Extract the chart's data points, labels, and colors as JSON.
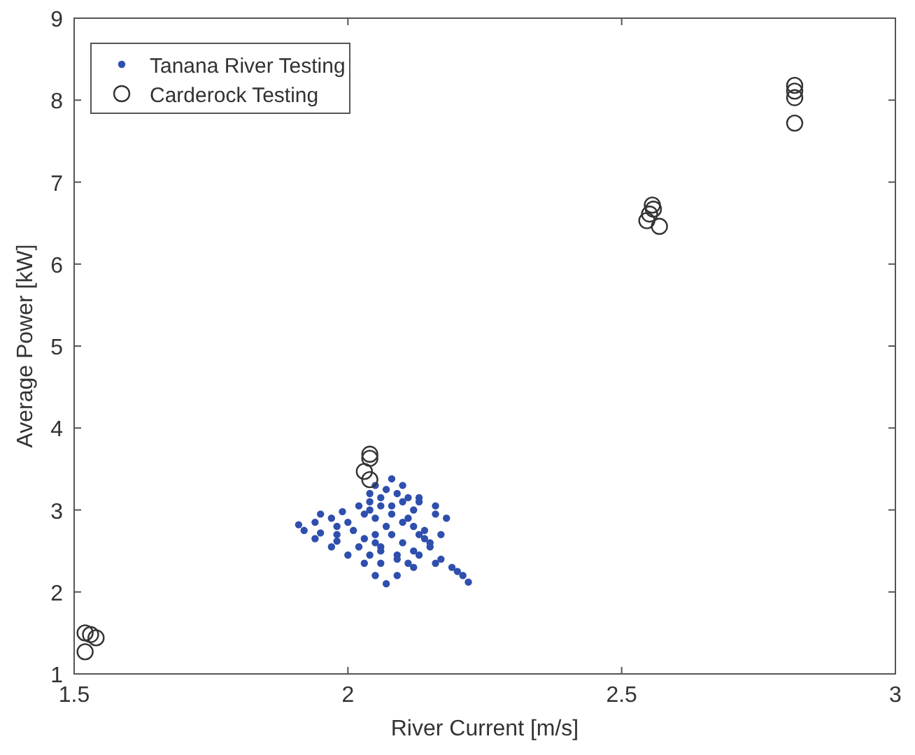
{
  "chart_data": {
    "type": "scatter",
    "xlabel": "River Current [m/s]",
    "ylabel": "Average Power [kW]",
    "xlim": [
      1.5,
      3
    ],
    "xticks": [
      1.5,
      2,
      2.5,
      3
    ],
    "ylim": [
      1,
      9
    ],
    "yticks": [
      1,
      2,
      3,
      4,
      5,
      6,
      7,
      8,
      9
    ],
    "grid": false,
    "legend": "top left",
    "series": [
      {
        "name": "Tanana River Testing",
        "color": "#2f4fad",
        "marker": "circle",
        "x": [
          2.05,
          2.08,
          2.1,
          2.13,
          2.16,
          2.18,
          2.17,
          2.15,
          2.17,
          2.19,
          2.21,
          2.22,
          2.2,
          2.16,
          2.12,
          2.09,
          2.07,
          2.05,
          2.03,
          2.0,
          1.97,
          1.94,
          1.92,
          1.91,
          1.94,
          1.98,
          2.01,
          1.98,
          1.95,
          1.98,
          2.02,
          2.05,
          2.08,
          2.1,
          2.12,
          2.1,
          2.06,
          2.03,
          2.0,
          1.97,
          1.95,
          1.99,
          2.04,
          2.08,
          2.12,
          2.14,
          2.12,
          2.09,
          2.06,
          2.04,
          2.06,
          2.1,
          2.14,
          2.16,
          2.13,
          2.09,
          2.06,
          2.04,
          2.02,
          2.05,
          2.07,
          2.05,
          2.03,
          2.06,
          2.09,
          2.11,
          2.13,
          2.15,
          2.13,
          2.11,
          2.08,
          2.04,
          2.07,
          2.11
        ],
        "values": [
          3.3,
          3.38,
          3.3,
          3.15,
          3.05,
          2.9,
          2.7,
          2.55,
          2.4,
          2.3,
          2.2,
          2.12,
          2.25,
          2.35,
          2.3,
          2.2,
          2.1,
          2.2,
          2.35,
          2.45,
          2.55,
          2.65,
          2.75,
          2.82,
          2.85,
          2.8,
          2.75,
          2.7,
          2.72,
          2.62,
          2.55,
          2.6,
          2.7,
          2.85,
          3.0,
          3.1,
          3.05,
          2.95,
          2.85,
          2.9,
          2.95,
          2.98,
          3.0,
          2.95,
          2.8,
          2.65,
          2.5,
          2.4,
          2.35,
          2.45,
          2.55,
          2.6,
          2.75,
          2.95,
          3.1,
          3.2,
          3.15,
          3.1,
          3.05,
          2.9,
          2.8,
          2.7,
          2.65,
          2.5,
          2.45,
          2.35,
          2.45,
          2.6,
          2.7,
          2.9,
          3.05,
          3.2,
          3.25,
          3.15
        ]
      },
      {
        "name": "Carderock Testing",
        "color": "#333333",
        "marker": "open-circle",
        "x": [
          1.52,
          1.53,
          1.54,
          1.52,
          2.04,
          2.04,
          2.03,
          2.04,
          2.556,
          2.558,
          2.551,
          2.546,
          2.569,
          2.816,
          2.816,
          2.816,
          2.816
        ],
        "values": [
          1.5,
          1.48,
          1.44,
          1.27,
          3.68,
          3.63,
          3.47,
          3.37,
          6.72,
          6.67,
          6.61,
          6.53,
          6.46,
          8.18,
          8.11,
          8.03,
          7.72
        ]
      }
    ]
  }
}
